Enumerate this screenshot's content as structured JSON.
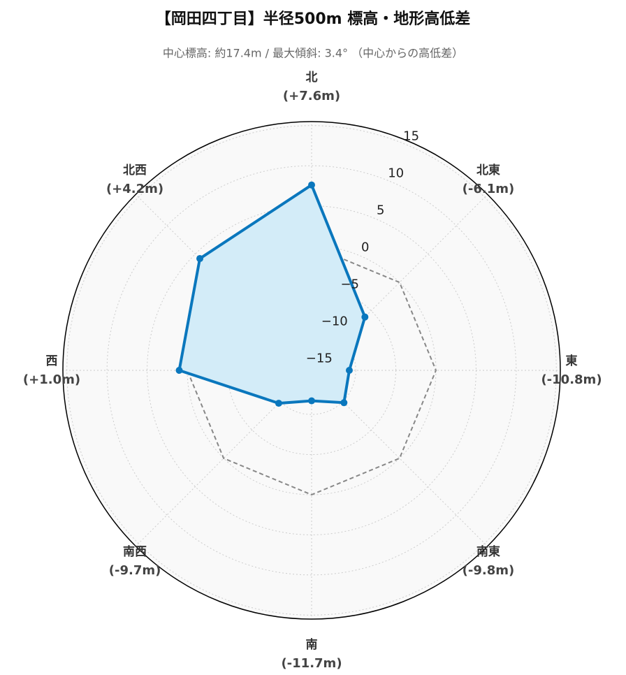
{
  "chart_data": {
    "type": "radar",
    "title": "【岡田四丁目】半径500m 標高・地形高低差",
    "subtitle": "中心標高: 約17.4m / 最大傾斜: 3.4° （中心からの高低差）",
    "categories": [
      "北",
      "北東",
      "東",
      "南東",
      "南",
      "南西",
      "西",
      "北西"
    ],
    "series": [
      {
        "color": "#0a77bd",
        "fill": "#d3ecf8",
        "values": [
          7.6,
          -6.1,
          -10.8,
          -9.8,
          -11.7,
          -9.7,
          1.0,
          4.2
        ],
        "value_labels": [
          "(+7.6m)",
          "(-6.1m)",
          "(-10.8m)",
          "(-9.8m)",
          "(-11.7m)",
          "(-9.7m)",
          "(+1.0m)",
          "(+4.2m)"
        ]
      }
    ],
    "baseline": 0,
    "baseline_color": "#888888",
    "rlim": [
      -15.5,
      15.5
    ],
    "rticks": [
      {
        "value": -15,
        "label": "−15"
      },
      {
        "value": -10,
        "label": "−10"
      },
      {
        "value": -5,
        "label": "−5"
      },
      0,
      5,
      10,
      15
    ],
    "grid": true
  }
}
